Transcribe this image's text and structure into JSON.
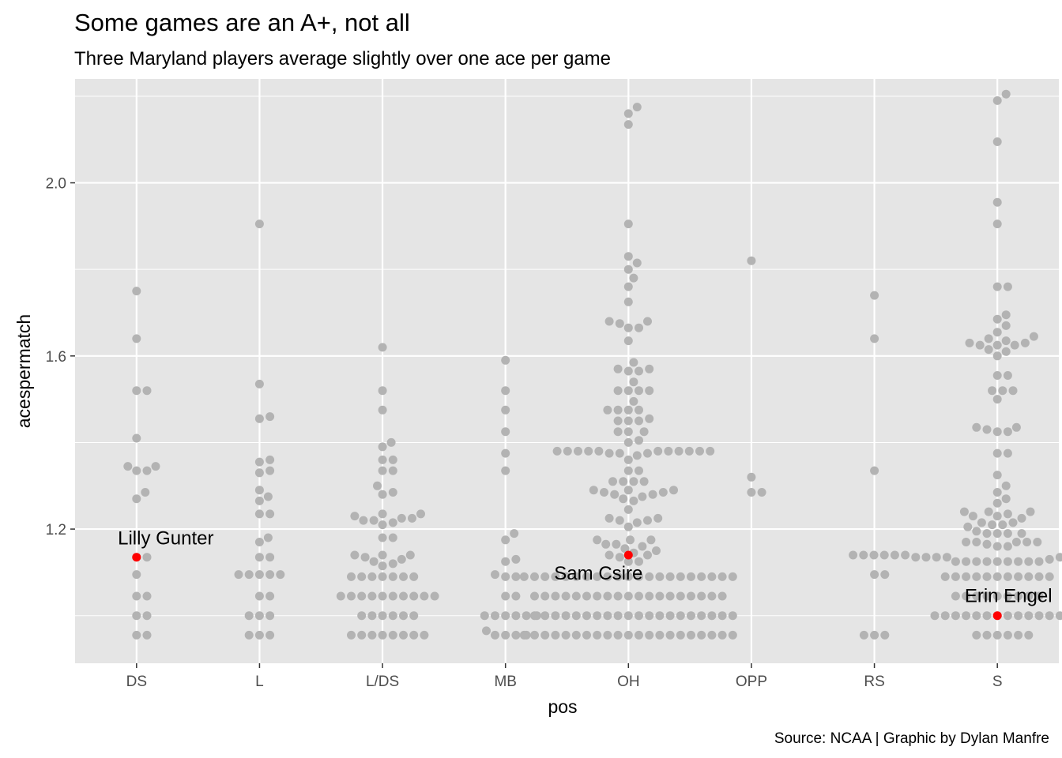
{
  "chart_data": {
    "type": "scatter",
    "subtype": "beeswarm",
    "title": "Some games are an A+, not all",
    "subtitle": "Three Maryland players average slightly over one ace per game",
    "xlabel": "pos",
    "ylabel": "acespermatch",
    "caption": "Source: NCAA | Graphic by Dylan Manfre",
    "categories": [
      "DS",
      "L",
      "L/DS",
      "MB",
      "OH",
      "OPP",
      "RS",
      "S"
    ],
    "ylim": [
      0.89,
      2.24
    ],
    "yticks": [
      1.2,
      1.6,
      2.0
    ],
    "ytick_labels": [
      "1.2",
      "1.6",
      "2.0"
    ],
    "grid": true,
    "legend": "none",
    "colors": {
      "panel": "#e5e5e5",
      "grid": "#ffffff",
      "point": "#b3b3b3",
      "highlight": "#ff0000"
    },
    "groups": [
      {
        "category": "DS",
        "values": [
          0.955,
          0.955,
          1.0,
          1.0,
          1.045,
          1.045,
          1.095,
          1.135,
          1.135,
          1.27,
          1.285,
          1.335,
          1.335,
          1.345,
          1.345,
          1.41,
          1.52,
          1.52,
          1.64,
          1.75
        ]
      },
      {
        "category": "L",
        "values": [
          0.955,
          0.955,
          0.955,
          1.0,
          1.0,
          1.0,
          1.045,
          1.045,
          1.095,
          1.095,
          1.095,
          1.095,
          1.095,
          1.135,
          1.135,
          1.17,
          1.18,
          1.235,
          1.235,
          1.265,
          1.275,
          1.29,
          1.33,
          1.335,
          1.355,
          1.36,
          1.455,
          1.46,
          1.535,
          1.905
        ]
      },
      {
        "category": "L/DS",
        "values": [
          0.955,
          0.955,
          0.955,
          0.955,
          0.955,
          0.955,
          0.955,
          0.955,
          1.0,
          1.0,
          1.0,
          1.0,
          1.0,
          1.0,
          1.045,
          1.045,
          1.045,
          1.045,
          1.045,
          1.045,
          1.045,
          1.045,
          1.045,
          1.045,
          1.09,
          1.09,
          1.09,
          1.09,
          1.09,
          1.09,
          1.09,
          1.115,
          1.12,
          1.125,
          1.13,
          1.135,
          1.14,
          1.14,
          1.14,
          1.18,
          1.18,
          1.21,
          1.215,
          1.22,
          1.22,
          1.225,
          1.225,
          1.23,
          1.235,
          1.235,
          1.28,
          1.285,
          1.3,
          1.335,
          1.335,
          1.36,
          1.36,
          1.39,
          1.4,
          1.475,
          1.52,
          1.62
        ]
      },
      {
        "category": "MB",
        "values": [
          0.955,
          0.955,
          0.955,
          0.955,
          0.965,
          1.0,
          1.0,
          1.0,
          1.0,
          1.0,
          1.0,
          1.045,
          1.045,
          1.09,
          1.09,
          1.095,
          1.125,
          1.13,
          1.175,
          1.19,
          1.335,
          1.375,
          1.425,
          1.475,
          1.52,
          1.59
        ]
      },
      {
        "category": "OH",
        "values": [
          0.955,
          0.955,
          0.955,
          0.955,
          0.955,
          0.955,
          0.955,
          0.955,
          0.955,
          0.955,
          0.955,
          0.955,
          0.955,
          0.955,
          0.955,
          0.955,
          0.955,
          0.955,
          0.955,
          0.955,
          0.955,
          1.0,
          1.0,
          1.0,
          1.0,
          1.0,
          1.0,
          1.0,
          1.0,
          1.0,
          1.0,
          1.0,
          1.0,
          1.0,
          1.0,
          1.0,
          1.0,
          1.0,
          1.0,
          1.0,
          1.0,
          1.045,
          1.045,
          1.045,
          1.045,
          1.045,
          1.045,
          1.045,
          1.045,
          1.045,
          1.045,
          1.045,
          1.045,
          1.045,
          1.045,
          1.045,
          1.045,
          1.045,
          1.045,
          1.045,
          1.09,
          1.09,
          1.09,
          1.09,
          1.09,
          1.09,
          1.09,
          1.09,
          1.09,
          1.09,
          1.09,
          1.09,
          1.09,
          1.09,
          1.09,
          1.09,
          1.09,
          1.09,
          1.09,
          1.09,
          1.09,
          1.125,
          1.125,
          1.135,
          1.14,
          1.14,
          1.145,
          1.15,
          1.155,
          1.16,
          1.165,
          1.165,
          1.175,
          1.175,
          1.175,
          1.205,
          1.215,
          1.22,
          1.22,
          1.225,
          1.225,
          1.245,
          1.265,
          1.27,
          1.275,
          1.28,
          1.28,
          1.285,
          1.285,
          1.29,
          1.29,
          1.29,
          1.31,
          1.31,
          1.31,
          1.31,
          1.335,
          1.335,
          1.36,
          1.37,
          1.375,
          1.375,
          1.375,
          1.38,
          1.38,
          1.38,
          1.38,
          1.38,
          1.38,
          1.38,
          1.38,
          1.38,
          1.38,
          1.38,
          1.4,
          1.405,
          1.425,
          1.425,
          1.425,
          1.45,
          1.45,
          1.45,
          1.455,
          1.475,
          1.475,
          1.475,
          1.475,
          1.495,
          1.52,
          1.52,
          1.52,
          1.52,
          1.54,
          1.565,
          1.565,
          1.57,
          1.57,
          1.585,
          1.635,
          1.665,
          1.665,
          1.675,
          1.68,
          1.68,
          1.725,
          1.76,
          1.78,
          1.8,
          1.815,
          1.83,
          1.905,
          2.135,
          2.16,
          2.175
        ]
      },
      {
        "category": "OPP",
        "values": [
          1.285,
          1.285,
          1.32,
          1.82
        ]
      },
      {
        "category": "RS",
        "values": [
          0.955,
          0.955,
          0.955,
          1.095,
          1.095,
          1.335,
          1.64,
          1.74
        ]
      },
      {
        "category": "S",
        "values": [
          0.955,
          0.955,
          0.955,
          0.955,
          0.955,
          0.955,
          1.0,
          1.0,
          1.0,
          1.0,
          1.0,
          1.0,
          1.0,
          1.0,
          1.0,
          1.0,
          1.0,
          1.0,
          1.0,
          1.0,
          1.045,
          1.045,
          1.045,
          1.045,
          1.045,
          1.045,
          1.045,
          1.045,
          1.045,
          1.09,
          1.09,
          1.09,
          1.09,
          1.09,
          1.09,
          1.09,
          1.09,
          1.09,
          1.09,
          1.09,
          1.125,
          1.125,
          1.125,
          1.125,
          1.125,
          1.125,
          1.125,
          1.125,
          1.125,
          1.13,
          1.135,
          1.135,
          1.135,
          1.135,
          1.135,
          1.135,
          1.135,
          1.14,
          1.14,
          1.14,
          1.14,
          1.14,
          1.14,
          1.14,
          1.14,
          1.14,
          1.14,
          1.14,
          1.14,
          1.16,
          1.16,
          1.165,
          1.17,
          1.17,
          1.17,
          1.17,
          1.17,
          1.19,
          1.19,
          1.19,
          1.19,
          1.195,
          1.205,
          1.21,
          1.21,
          1.215,
          1.215,
          1.225,
          1.23,
          1.23,
          1.235,
          1.24,
          1.24,
          1.24,
          1.26,
          1.27,
          1.285,
          1.3,
          1.325,
          1.375,
          1.375,
          1.425,
          1.425,
          1.43,
          1.435,
          1.435,
          1.5,
          1.52,
          1.52,
          1.52,
          1.555,
          1.555,
          1.6,
          1.61,
          1.615,
          1.625,
          1.625,
          1.625,
          1.63,
          1.63,
          1.635,
          1.64,
          1.645,
          1.655,
          1.67,
          1.685,
          1.695,
          1.76,
          1.76,
          1.905,
          1.955,
          2.095,
          2.19,
          2.205
        ]
      }
    ],
    "highlights": [
      {
        "label": "Lilly Gunter",
        "category": "DS",
        "value": 1.135
      },
      {
        "label": "Sam Csire",
        "category": "OH",
        "value": 1.14
      },
      {
        "label": "Erin Engel",
        "category": "S",
        "value": 1.0
      }
    ]
  }
}
